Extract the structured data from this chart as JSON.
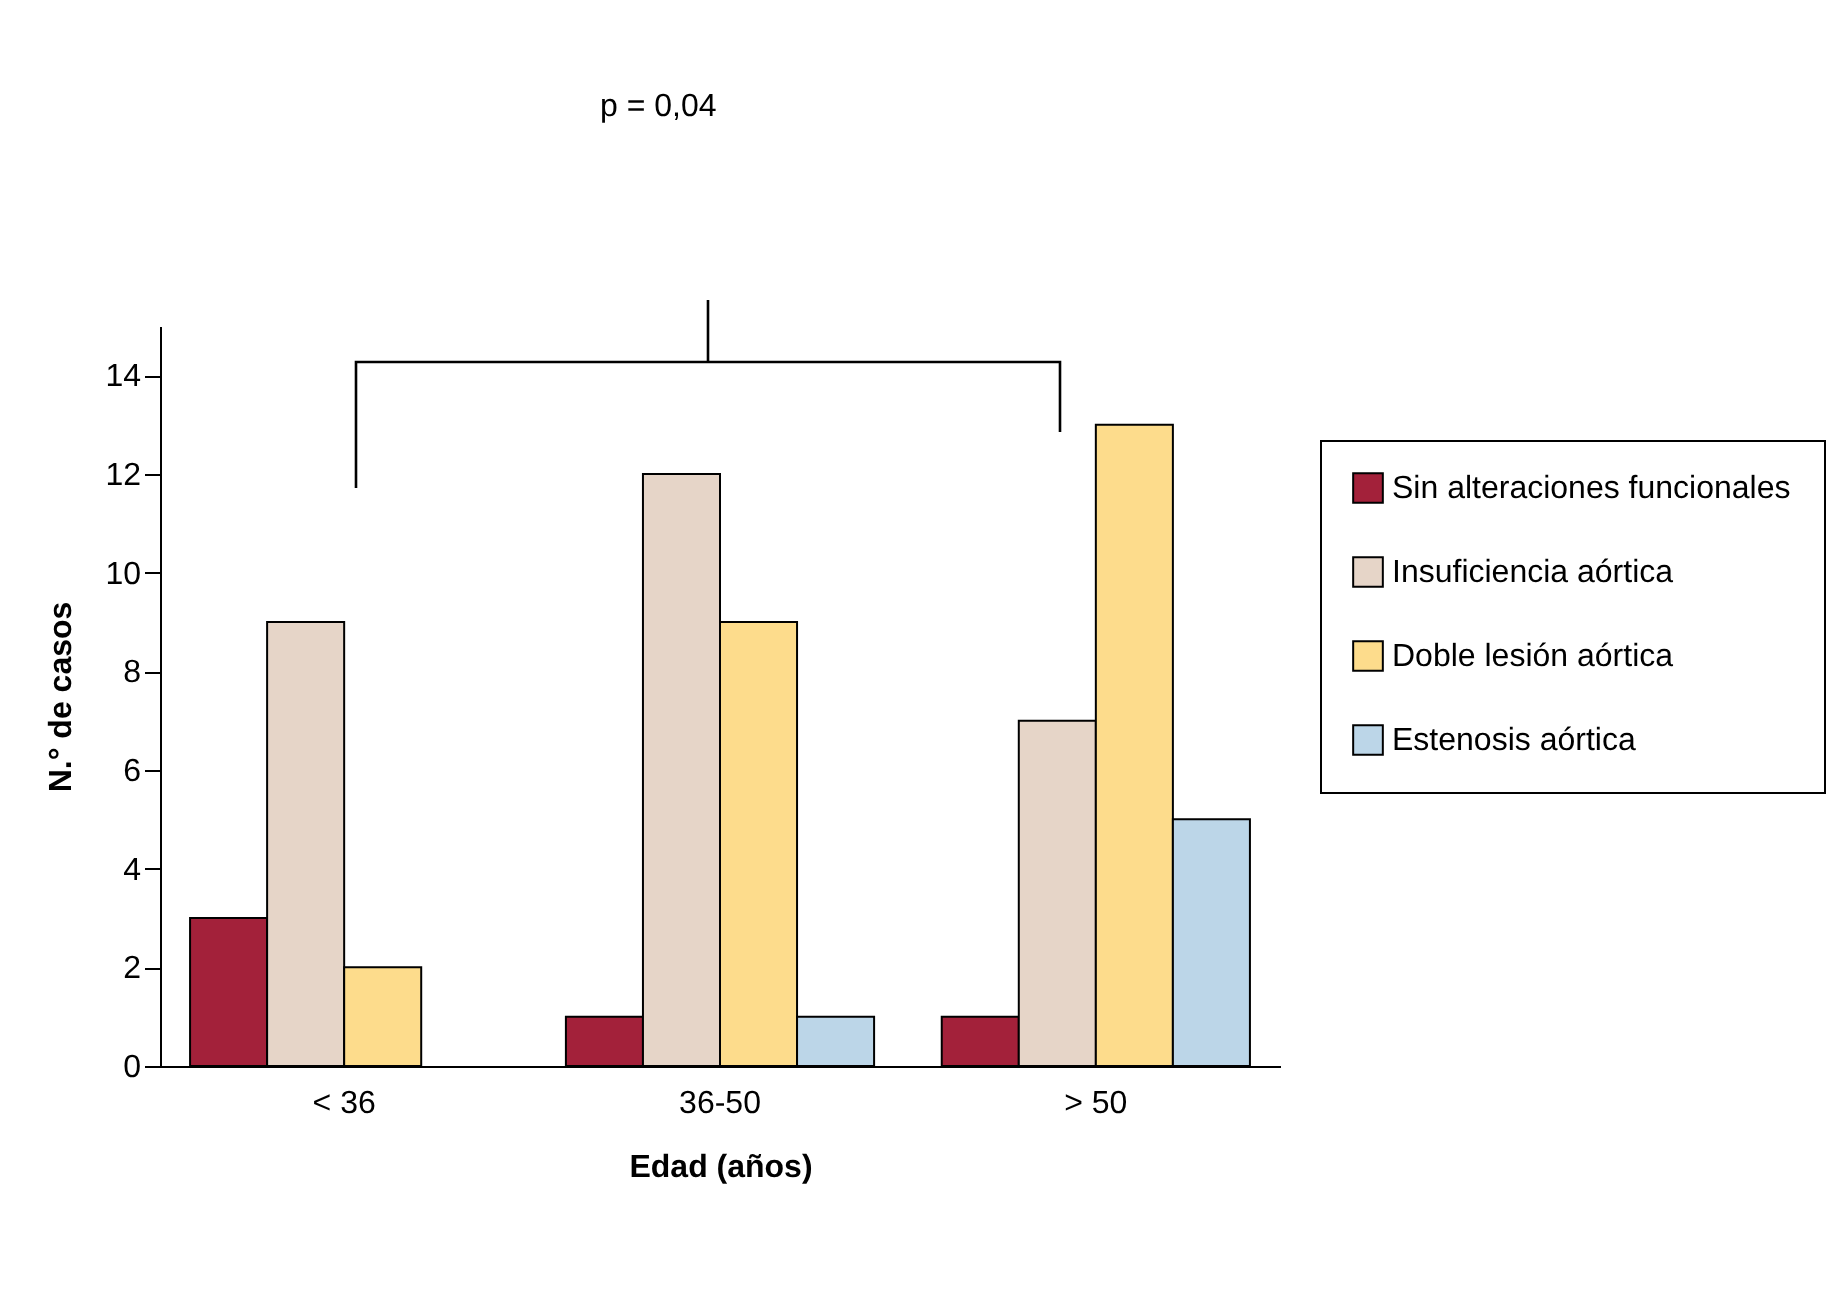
{
  "chart_data": {
    "type": "bar",
    "xlabel": "Edad (años)",
    "ylabel": "N.° de casos",
    "categories": [
      "< 36",
      "36-50",
      "> 50"
    ],
    "series": [
      {
        "name": "Sin alteraciones funcionales",
        "color": "#a3213a",
        "values": [
          3,
          1,
          1
        ]
      },
      {
        "name": "Insuficiencia aórtica",
        "color": "#e6d5c8",
        "values": [
          9,
          12,
          7
        ]
      },
      {
        "name": "Doble lesión aórtica",
        "color": "#fddc8c",
        "values": [
          2,
          9,
          13
        ]
      },
      {
        "name": "Estenosis aórtica",
        "color": "#bcd6e8",
        "values": [
          null,
          1,
          5
        ]
      }
    ],
    "ylim": [
      0,
      15
    ],
    "yticks": [
      0,
      2,
      4,
      6,
      8,
      10,
      12,
      14
    ],
    "grid": false,
    "legend": "right",
    "annotations": [
      "p = 0,04"
    ]
  }
}
